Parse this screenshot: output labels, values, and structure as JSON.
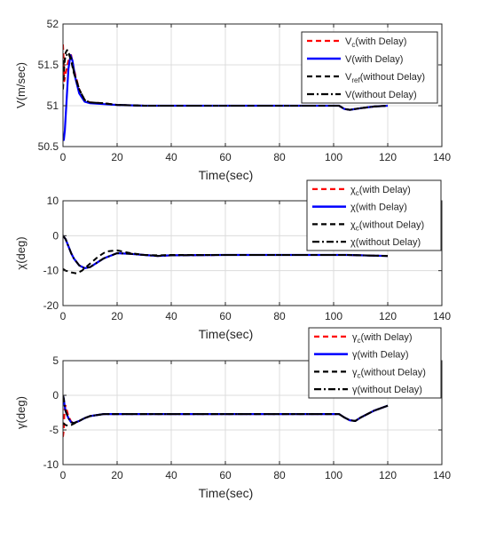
{
  "colors": {
    "red": "#ff0000",
    "blue": "#0000ff",
    "black": "#000000",
    "grid": "#dcdcdc",
    "axis": "#262626"
  },
  "chart_data": [
    {
      "type": "line",
      "xlabel": "Time(sec)",
      "ylabel": "V(m/sec)",
      "xlim": [
        0,
        140
      ],
      "ylim": [
        50.5,
        52
      ],
      "xticks": [
        "0",
        "20",
        "40",
        "60",
        "80",
        "100",
        "120",
        "140"
      ],
      "yticks": [
        "50.5",
        "51",
        "51.5",
        "52"
      ],
      "grid": true,
      "legend_position": "top-right",
      "series": [
        {
          "name": "V",
          "sub": "c",
          "suffix": "(with Delay)",
          "color": "#ff0000",
          "style": "dashed",
          "x": [
            0,
            0.2,
            0.5,
            1,
            2,
            3,
            4,
            6,
            8,
            10,
            15,
            20,
            30,
            50,
            80,
            100,
            102,
            104,
            106,
            110,
            115,
            120
          ],
          "y": [
            51.75,
            51.6,
            51.3,
            51.4,
            51.55,
            51.62,
            51.45,
            51.2,
            51.07,
            51.04,
            51.03,
            51.01,
            51.0,
            51.0,
            51.0,
            51.0,
            51.0,
            50.96,
            50.95,
            50.97,
            50.99,
            51.0
          ]
        },
        {
          "name": "V",
          "sub": "",
          "suffix": "(with Delay)",
          "color": "#0000ff",
          "style": "solid",
          "x": [
            0,
            0.3,
            0.7,
            1.2,
            2,
            2.8,
            3.5,
            4.5,
            6,
            8,
            10,
            15,
            20,
            30,
            50,
            80,
            100,
            102,
            104,
            106,
            110,
            115,
            120
          ],
          "y": [
            50.6,
            50.58,
            50.7,
            51.0,
            51.45,
            51.62,
            51.55,
            51.35,
            51.15,
            51.05,
            51.03,
            51.02,
            51.01,
            51.0,
            51.0,
            51.0,
            51.0,
            51.0,
            50.96,
            50.95,
            50.97,
            50.99,
            51.0
          ]
        },
        {
          "name": "V",
          "sub": "ref",
          "suffix": "(without Delay)",
          "color": "#000000",
          "style": "dashed",
          "x": [
            0,
            0.5,
            1,
            1.5,
            2,
            3,
            4,
            6,
            8,
            10,
            15,
            20,
            30,
            50,
            80,
            100,
            102,
            104,
            106,
            110,
            115,
            120
          ],
          "y": [
            51.2,
            51.5,
            51.65,
            51.68,
            51.65,
            51.55,
            51.4,
            51.2,
            51.07,
            51.04,
            51.03,
            51.01,
            51.0,
            51.0,
            51.0,
            51.0,
            51.0,
            50.96,
            50.95,
            50.97,
            50.99,
            51.0
          ]
        },
        {
          "name": "V",
          "sub": "",
          "suffix": "(without Delay)",
          "color": "#000000",
          "style": "dashdot",
          "x": [
            0,
            0.5,
            1,
            2,
            3,
            4,
            6,
            8,
            10,
            15,
            20,
            30,
            50,
            80,
            100,
            102,
            104,
            106,
            110,
            115,
            120
          ],
          "y": [
            51.5,
            51.55,
            51.6,
            51.65,
            51.58,
            51.42,
            51.2,
            51.07,
            51.04,
            51.03,
            51.01,
            51.0,
            51.0,
            51.0,
            51.0,
            51.0,
            50.96,
            50.95,
            50.97,
            50.99,
            51.0
          ]
        }
      ]
    },
    {
      "type": "line",
      "xlabel": "Time(sec)",
      "ylabel": "χ(deg)",
      "xlim": [
        0,
        140
      ],
      "ylim": [
        -20,
        10
      ],
      "xticks": [
        "0",
        "20",
        "40",
        "60",
        "80",
        "100",
        "120",
        "140"
      ],
      "yticks": [
        "-20",
        "-10",
        "0",
        "10"
      ],
      "grid": true,
      "legend_position": "top-right",
      "series": [
        {
          "name": "χ",
          "sub": "c",
          "suffix": "(with Delay)",
          "color": "#ff0000",
          "style": "dashed",
          "x": [
            0,
            1,
            2,
            3,
            4,
            6,
            8,
            10,
            12,
            15,
            20,
            25,
            30,
            35,
            40,
            60,
            80,
            100,
            105,
            110,
            115,
            120
          ],
          "y": [
            0,
            -1,
            -3,
            -5,
            -6.5,
            -8.5,
            -9.3,
            -9,
            -8,
            -6.5,
            -5,
            -5.2,
            -5.5,
            -5.8,
            -5.6,
            -5.5,
            -5.5,
            -5.5,
            -5.5,
            -5.6,
            -5.7,
            -5.8
          ]
        },
        {
          "name": "χ",
          "sub": "",
          "suffix": "(with Delay)",
          "color": "#0000ff",
          "style": "solid",
          "x": [
            0,
            1,
            2,
            3,
            4,
            6,
            8,
            10,
            12,
            15,
            20,
            25,
            30,
            35,
            40,
            60,
            80,
            100,
            105,
            110,
            115,
            120
          ],
          "y": [
            0,
            -1,
            -3,
            -5,
            -6.5,
            -8.5,
            -9.3,
            -9,
            -8,
            -6.5,
            -5,
            -5.2,
            -5.5,
            -5.8,
            -5.6,
            -5.5,
            -5.5,
            -5.5,
            -5.5,
            -5.6,
            -5.7,
            -5.8
          ]
        },
        {
          "name": "χ",
          "sub": "c",
          "suffix": "(without Delay)",
          "color": "#000000",
          "style": "dashed",
          "x": [
            0,
            1,
            2,
            3,
            5,
            7,
            10,
            13,
            16,
            20,
            25,
            30,
            35,
            40,
            60,
            80,
            100,
            105,
            110,
            115,
            120
          ],
          "y": [
            -9.5,
            -10,
            -10.2,
            -10.5,
            -10.8,
            -10,
            -8,
            -6,
            -4.5,
            -4.2,
            -5,
            -5.5,
            -5.6,
            -5.5,
            -5.5,
            -5.5,
            -5.5,
            -5.5,
            -5.6,
            -5.7,
            -5.8
          ]
        },
        {
          "name": "χ",
          "sub": "",
          "suffix": "(without Delay)",
          "color": "#000000",
          "style": "dashdot",
          "x": [
            0,
            1,
            2,
            3,
            4,
            6,
            8,
            10,
            12,
            15,
            20,
            25,
            30,
            35,
            40,
            60,
            80,
            100,
            105,
            110,
            115,
            120
          ],
          "y": [
            0,
            -1,
            -3,
            -5,
            -6.5,
            -8.5,
            -9.3,
            -9,
            -8,
            -6.5,
            -5,
            -5.2,
            -5.5,
            -5.8,
            -5.6,
            -5.5,
            -5.5,
            -5.5,
            -5.5,
            -5.6,
            -5.7,
            -5.8
          ]
        }
      ]
    },
    {
      "type": "line",
      "xlabel": "Time(sec)",
      "ylabel": "γ(deg)",
      "xlim": [
        0,
        140
      ],
      "ylim": [
        -10,
        5
      ],
      "xticks": [
        "0",
        "20",
        "40",
        "60",
        "80",
        "100",
        "120",
        "140"
      ],
      "yticks": [
        "-10",
        "-5",
        "0",
        "5"
      ],
      "grid": true,
      "legend_position": "top-right",
      "series": [
        {
          "name": "γ",
          "sub": "c",
          "suffix": "(with Delay)",
          "color": "#ff0000",
          "style": "dashed",
          "x": [
            0,
            0.3,
            0.6,
            1,
            2,
            3,
            4,
            6,
            8,
            10,
            15,
            20,
            40,
            60,
            80,
            100,
            102,
            104,
            106,
            108,
            110,
            115,
            120
          ],
          "y": [
            -6,
            -5,
            -2,
            -1.5,
            -3,
            -3.8,
            -4,
            -3.7,
            -3.3,
            -3,
            -2.7,
            -2.7,
            -2.7,
            -2.7,
            -2.7,
            -2.7,
            -2.7,
            -3.2,
            -3.6,
            -3.7,
            -3.2,
            -2.2,
            -1.5
          ]
        },
        {
          "name": "γ",
          "sub": "",
          "suffix": "(with Delay)",
          "color": "#0000ff",
          "style": "solid",
          "x": [
            0,
            0.3,
            0.6,
            1,
            2,
            3,
            4,
            6,
            8,
            10,
            15,
            20,
            40,
            60,
            80,
            100,
            102,
            104,
            106,
            108,
            110,
            115,
            120
          ],
          "y": [
            0,
            -0.5,
            -1.5,
            -2.3,
            -3.3,
            -3.9,
            -4,
            -3.7,
            -3.3,
            -3,
            -2.7,
            -2.7,
            -2.7,
            -2.7,
            -2.7,
            -2.7,
            -2.7,
            -3.2,
            -3.6,
            -3.7,
            -3.2,
            -2.2,
            -1.5
          ]
        },
        {
          "name": "γ",
          "sub": "c",
          "suffix": "(without Delay)",
          "color": "#000000",
          "style": "dashed",
          "x": [
            0,
            1,
            2,
            3,
            4,
            6,
            8,
            10,
            15,
            20,
            40,
            60,
            80,
            100,
            102,
            104,
            106,
            108,
            110,
            115,
            120
          ],
          "y": [
            -4,
            -4.3,
            -4.4,
            -4.3,
            -4.1,
            -3.7,
            -3.3,
            -3,
            -2.7,
            -2.7,
            -2.7,
            -2.7,
            -2.7,
            -2.7,
            -2.7,
            -3.2,
            -3.6,
            -3.7,
            -3.2,
            -2.2,
            -1.5
          ]
        },
        {
          "name": "γ",
          "sub": "",
          "suffix": "(without Delay)",
          "color": "#000000",
          "style": "dashdot",
          "x": [
            0,
            0.3,
            0.6,
            1,
            2,
            3,
            4,
            6,
            8,
            10,
            15,
            20,
            40,
            60,
            80,
            100,
            102,
            104,
            106,
            108,
            110,
            115,
            120
          ],
          "y": [
            0,
            -0.5,
            -1.5,
            -2.3,
            -3.3,
            -3.9,
            -4,
            -3.7,
            -3.3,
            -3,
            -2.7,
            -2.7,
            -2.7,
            -2.7,
            -2.7,
            -2.7,
            -2.7,
            -3.2,
            -3.6,
            -3.7,
            -3.2,
            -2.2,
            -1.5
          ]
        }
      ]
    }
  ]
}
